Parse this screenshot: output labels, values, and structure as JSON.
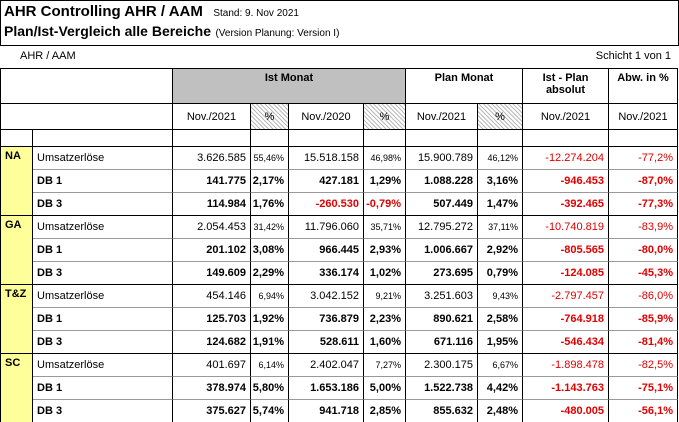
{
  "header": {
    "title": "AHR Controlling AHR / AAM",
    "stand": "Stand: 9. Nov 2021",
    "subtitle": "Plan/Ist-Vergleich alle Bereiche",
    "version": "(Version Planung: Version I)"
  },
  "scope": "AHR / AAM",
  "page": "Schicht 1 von 1",
  "table": {
    "groups": [
      "Ist Monat",
      "Plan Monat",
      "Ist - Plan absolut",
      "Abw. in %"
    ],
    "columns": [
      "Nov./2021",
      "%",
      "Nov./2020",
      "%",
      "Nov./2021",
      "%",
      "Nov./2021",
      "Nov./2021"
    ],
    "regions": [
      {
        "code": "NA",
        "rows": [
          [
            "Umsatzerlöse",
            "3.626.585",
            "55,46%",
            "15.518.158",
            "46,98%",
            "15.900.789",
            "46,12%",
            "-12.274.204",
            "-77,2%"
          ],
          [
            "DB 1",
            "141.775",
            "2,17%",
            "427.181",
            "1,29%",
            "1.088.228",
            "3,16%",
            "-946.453",
            "-87,0%"
          ],
          [
            "DB 3",
            "114.984",
            "1,76%",
            "-260.530",
            "-0,79%",
            "507.449",
            "1,47%",
            "-392.465",
            "-77,3%"
          ]
        ]
      },
      {
        "code": "GA",
        "rows": [
          [
            "Umsatzerlöse",
            "2.054.453",
            "31,42%",
            "11.796.060",
            "35,71%",
            "12.795.272",
            "37,11%",
            "-10.740.819",
            "-83,9%"
          ],
          [
            "DB 1",
            "201.102",
            "3,08%",
            "966.445",
            "2,93%",
            "1.006.667",
            "2,92%",
            "-805.565",
            "-80,0%"
          ],
          [
            "DB 3",
            "149.609",
            "2,29%",
            "336.174",
            "1,02%",
            "273.695",
            "0,79%",
            "-124.085",
            "-45,3%"
          ]
        ]
      },
      {
        "code": "T&Z",
        "rows": [
          [
            "Umsatzerlöse",
            "454.146",
            "6,94%",
            "3.042.152",
            "9,21%",
            "3.251.603",
            "9,43%",
            "-2.797.457",
            "-86,0%"
          ],
          [
            "DB 1",
            "125.703",
            "1,92%",
            "736.879",
            "2,23%",
            "890.621",
            "2,58%",
            "-764.918",
            "-85,9%"
          ],
          [
            "DB 3",
            "124.682",
            "1,91%",
            "528.611",
            "1,60%",
            "671.116",
            "1,95%",
            "-546.434",
            "-81,4%"
          ]
        ]
      },
      {
        "code": "SC",
        "rows": [
          [
            "Umsatzerlöse",
            "401.697",
            "6,14%",
            "2.402.047",
            "7,27%",
            "2.300.175",
            "6,67%",
            "-1.898.478",
            "-82,5%"
          ],
          [
            "DB 1",
            "378.974",
            "5,80%",
            "1.653.186",
            "5,00%",
            "1.522.738",
            "4,42%",
            "-1.143.763",
            "-75,1%"
          ],
          [
            "DB 3",
            "375.627",
            "5,74%",
            "941.718",
            "2,85%",
            "855.632",
            "2,48%",
            "-480.005",
            "-56,1%"
          ]
        ]
      }
    ]
  }
}
